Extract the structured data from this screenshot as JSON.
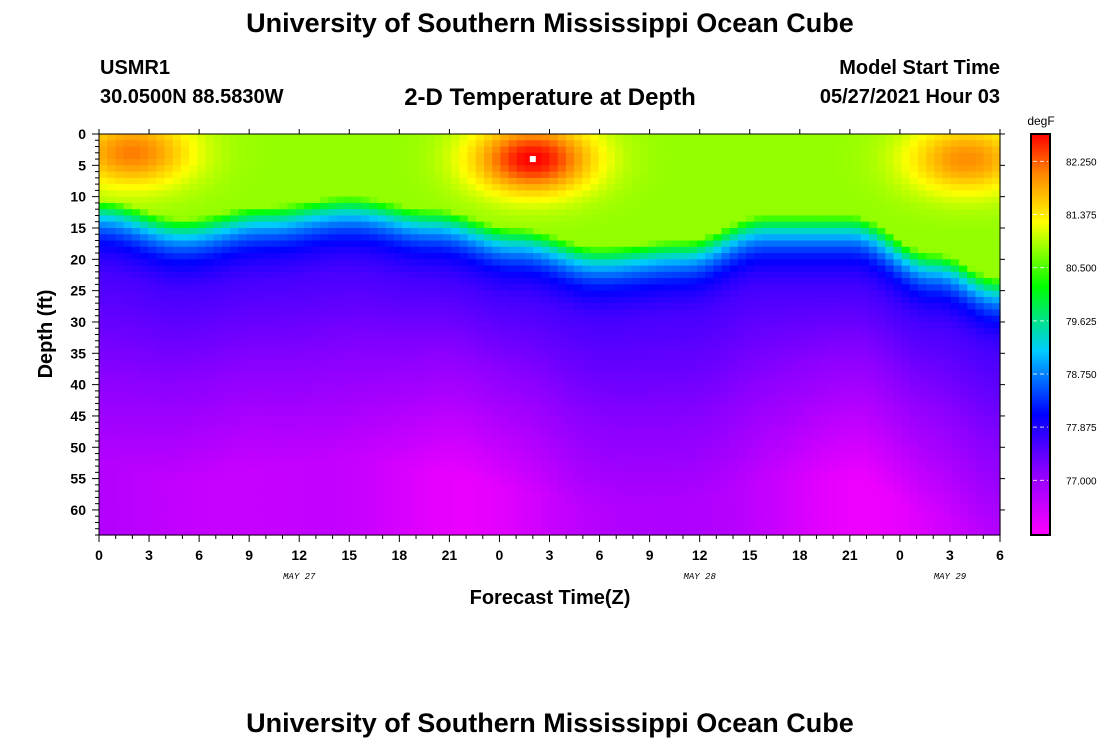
{
  "header": {
    "title": "University of Southern Mississippi Ocean Cube",
    "station": "USMR1",
    "coords": "30.0500N  88.5830W",
    "subtitle": "2-D Temperature at Depth",
    "model_start_label": "Model Start Time",
    "model_start_value": "05/27/2021 Hour 03"
  },
  "footer": {
    "title": "University of Southern Mississippi Ocean Cube"
  },
  "chart_data": {
    "type": "heatmap",
    "title": "2-D Temperature at Depth",
    "xlabel": "Forecast Time(Z)",
    "ylabel": "Depth (ft)",
    "x_range_hours": [
      0,
      54
    ],
    "x_tick_hours": [
      0,
      3,
      6,
      9,
      12,
      15,
      18,
      21,
      24,
      27,
      30,
      33,
      36,
      39,
      42,
      45,
      48,
      51,
      54
    ],
    "x_tick_labels": [
      "0",
      "3",
      "6",
      "9",
      "12",
      "15",
      "18",
      "21",
      "0",
      "3",
      "6",
      "9",
      "12",
      "15",
      "18",
      "21",
      "0",
      "3",
      "6"
    ],
    "date_labels": [
      {
        "hour": 12,
        "text": "MAY 27"
      },
      {
        "hour": 36,
        "text": "MAY 28"
      },
      {
        "hour": 51,
        "text": "MAY 29"
      }
    ],
    "y_range_ft": [
      0,
      64
    ],
    "y_ticks_ft": [
      0,
      5,
      10,
      15,
      20,
      25,
      30,
      35,
      40,
      45,
      50,
      55,
      60
    ],
    "y_tick_labels": [
      "0",
      "5",
      "10",
      "15",
      "20",
      "25",
      "30",
      "35",
      "40",
      "45",
      "50",
      "55",
      "60"
    ],
    "colorbar": {
      "unit": "degF",
      "range": [
        76.1,
        82.7
      ],
      "tick_values": [
        82.25,
        81.375,
        80.5,
        79.625,
        78.75,
        77.875,
        77.0
      ],
      "tick_labels": [
        "82.250",
        "81.375",
        "80.500",
        "79.625",
        "78.750",
        "77.875",
        "77.000"
      ]
    },
    "thermocline_depth_ft": [
      {
        "hour": 0,
        "depth": 10.5
      },
      {
        "hour": 5,
        "depth": 13.5
      },
      {
        "hour": 10,
        "depth": 11.5
      },
      {
        "hour": 15,
        "depth": 10
      },
      {
        "hour": 20,
        "depth": 12
      },
      {
        "hour": 25,
        "depth": 15
      },
      {
        "hour": 30,
        "depth": 18
      },
      {
        "hour": 35,
        "depth": 17
      },
      {
        "hour": 40,
        "depth": 13
      },
      {
        "hour": 45,
        "depth": 13
      },
      {
        "hour": 50,
        "depth": 19
      },
      {
        "hour": 54,
        "depth": 23
      }
    ],
    "warm_spots": [
      {
        "hour": 2,
        "depth": 3,
        "max_temp": 82.1
      },
      {
        "hour": 26,
        "depth": 4,
        "max_temp": 82.7
      },
      {
        "hour": 52,
        "depth": 4,
        "max_temp": 82.0
      }
    ]
  }
}
